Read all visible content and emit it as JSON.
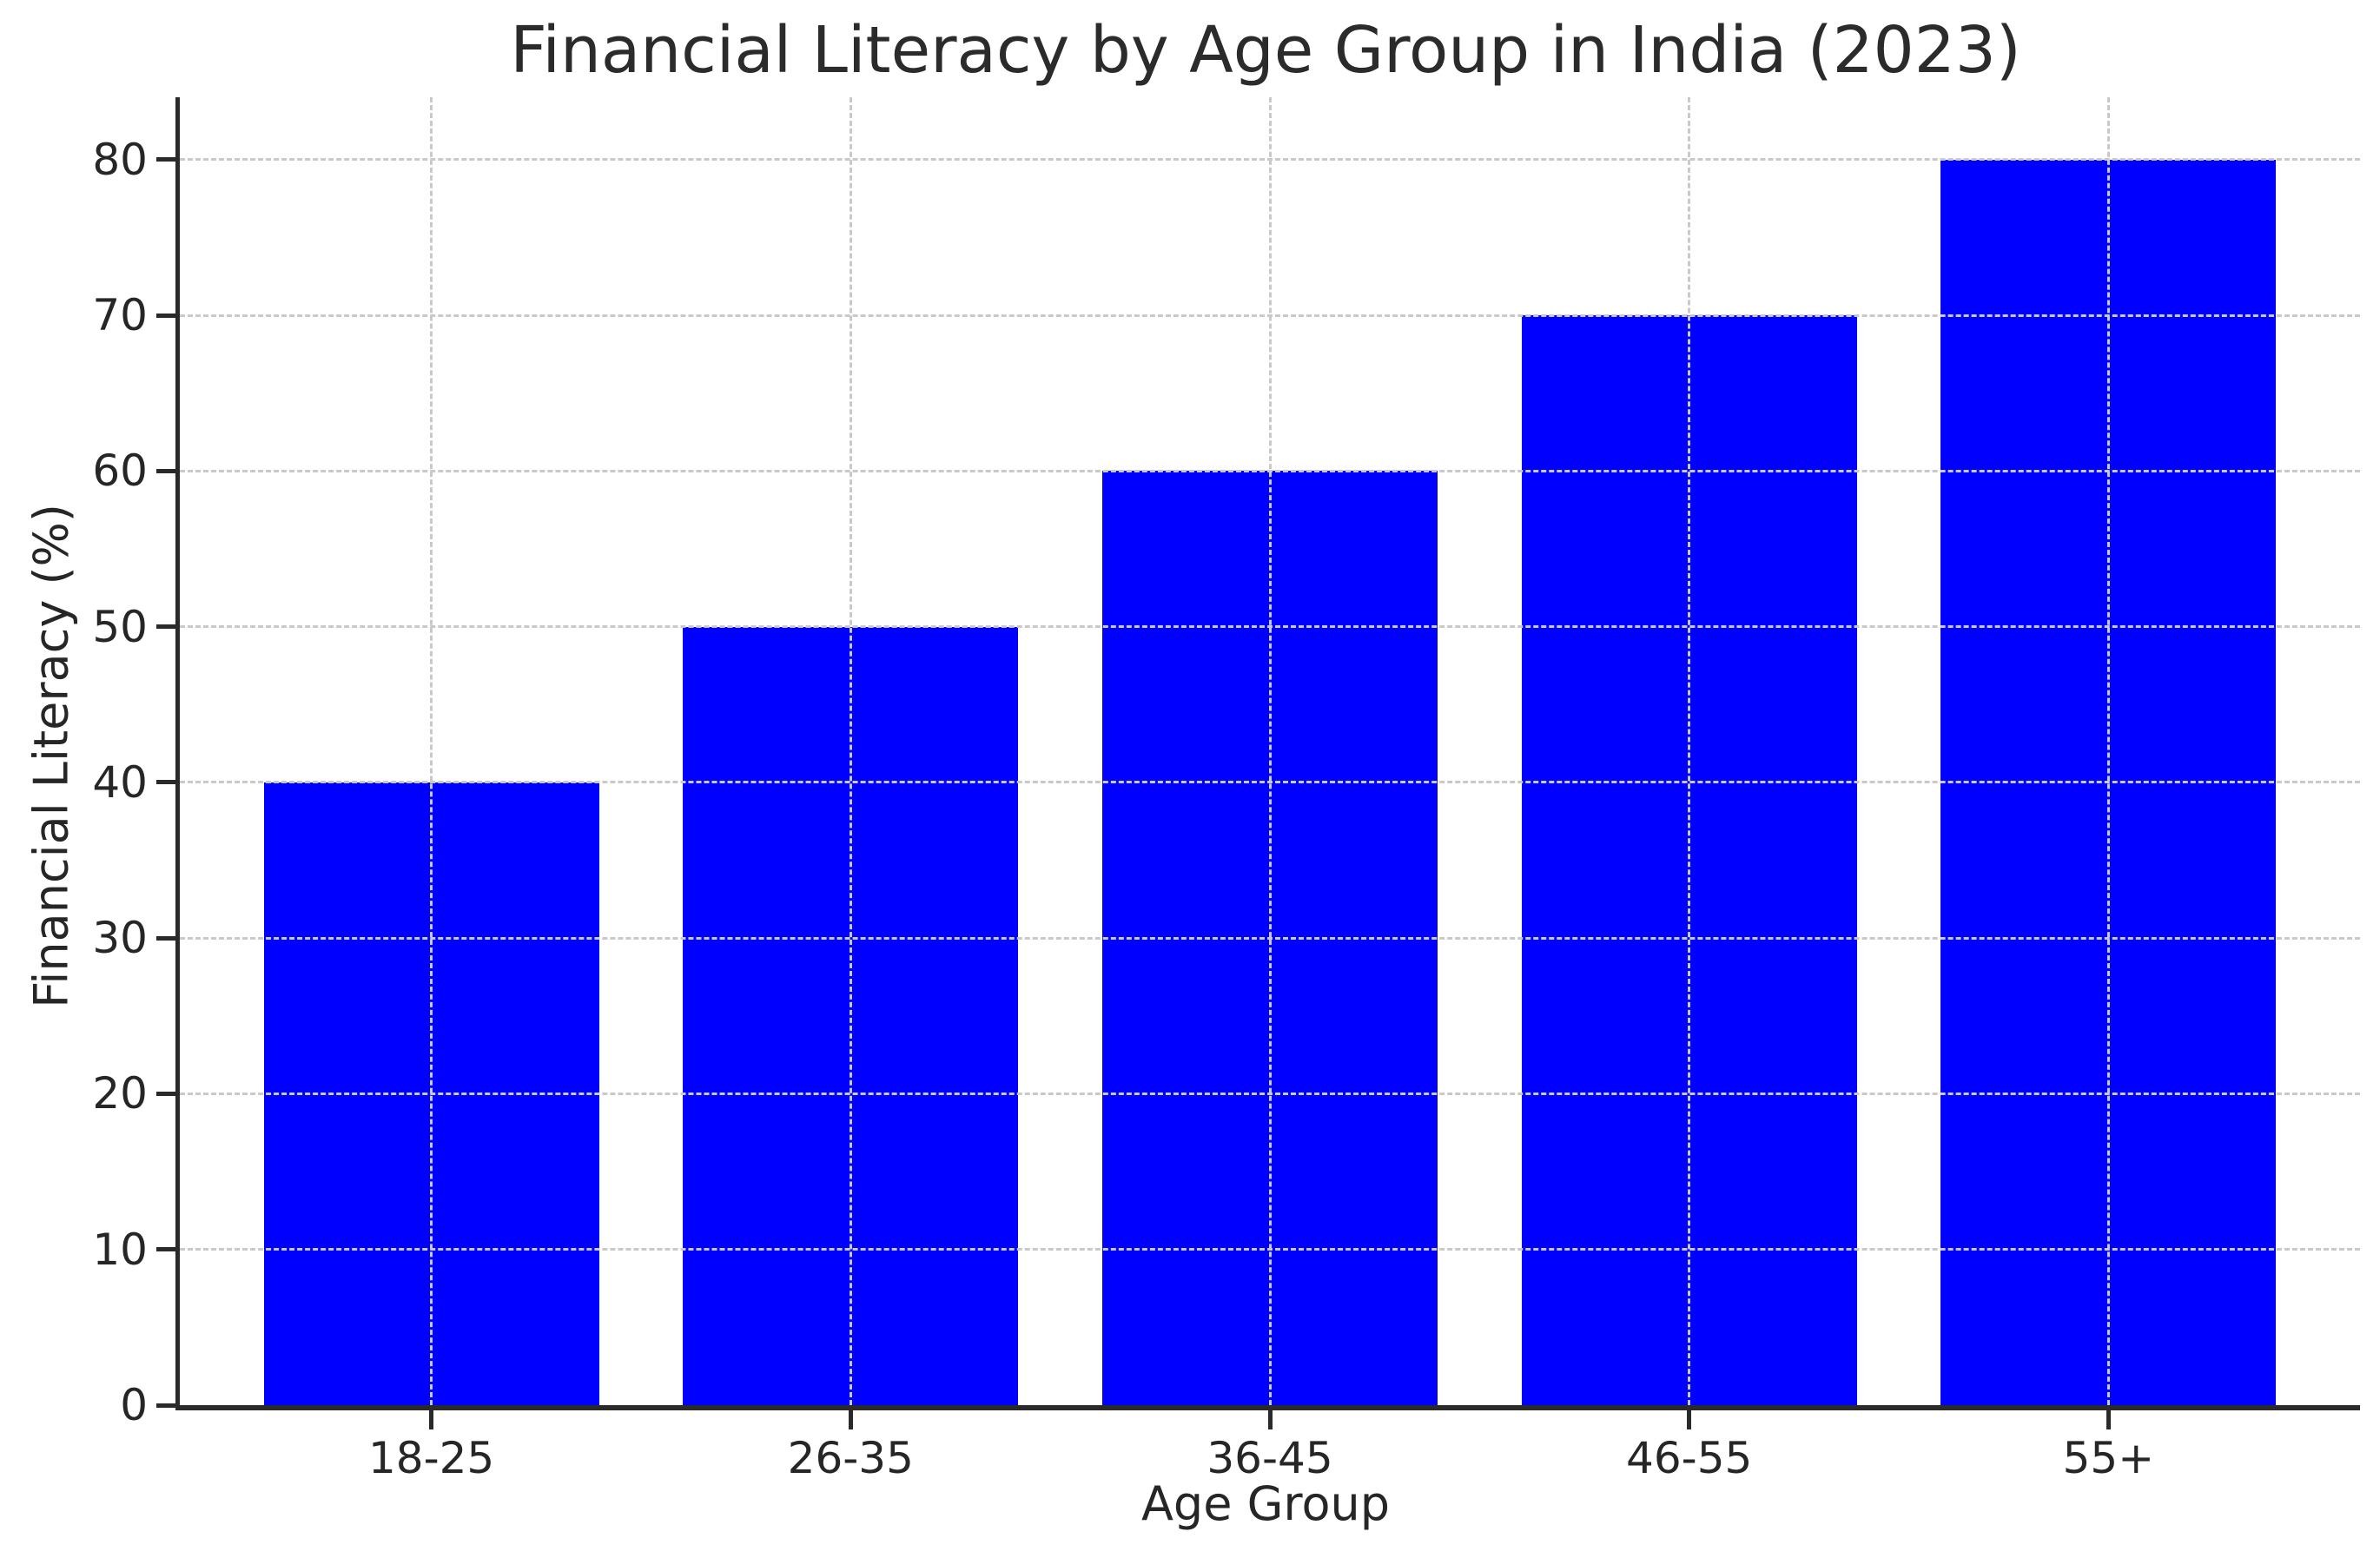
{
  "chart_data": {
    "type": "bar",
    "title": "Financial Literacy by Age Group in India (2023)",
    "xlabel": "Age Group",
    "ylabel": "Financial Literacy (%)",
    "categories": [
      "18-25",
      "26-35",
      "36-45",
      "46-55",
      "55+"
    ],
    "values": [
      40,
      50,
      60,
      70,
      80
    ],
    "yticks": [
      0,
      10,
      20,
      30,
      40,
      50,
      60,
      70,
      80
    ],
    "ylim": [
      0,
      84
    ],
    "bar_color": "#0000ff",
    "grid": "on",
    "grid_style": "dashed",
    "grid_color": "#c9c9c9",
    "axis_color": "#2a2a2a",
    "text_color": "#262626",
    "background_color": "#ffffff",
    "legend": "none",
    "bar_width_fraction": 0.8,
    "x_margin_units": 0.6
  }
}
